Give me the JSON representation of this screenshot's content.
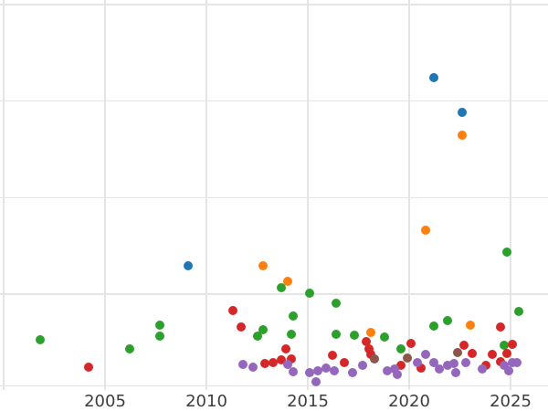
{
  "figure": {
    "background_color": "#ffffff",
    "grid_color": "#e5e5e5",
    "spine_color": "#e2e2e2",
    "tick_label_color": "#3d3d3d"
  },
  "chart_data": {
    "type": "scatter",
    "title": "",
    "xlabel": "",
    "ylabel": "",
    "grid": true,
    "legend": "none",
    "x_tick_labels": [
      "2005",
      "2010",
      "2015",
      "2020",
      "2025"
    ],
    "x_tick_years": [
      2005,
      2010,
      2015,
      2020,
      2025
    ],
    "x_gridline_years": [
      2000,
      2005,
      2010,
      2015,
      2020,
      2025
    ],
    "y_gridline_units": [
      1,
      2,
      3,
      4
    ],
    "xlim": [
      1999.8,
      2026.9
    ],
    "ylim": [
      0.04,
      4.05
    ],
    "y_axis_note": "y tick labels are cropped out of the visible image; values given in unlabeled gridline units (1 unit = one horizontal gridline spacing, 0 at extrapolated bottom gridline)",
    "marker_size_px": 10,
    "series": [
      {
        "name": "blue",
        "color": "#1f77b4",
        "points": [
          {
            "x": 2009.1,
            "y": 1.29
          },
          {
            "x": 2021.2,
            "y": 3.24
          },
          {
            "x": 2022.6,
            "y": 2.88
          }
        ]
      },
      {
        "name": "orange",
        "color": "#ff7f0e",
        "points": [
          {
            "x": 2012.8,
            "y": 1.29
          },
          {
            "x": 2014.0,
            "y": 1.13
          },
          {
            "x": 2018.1,
            "y": 0.6
          },
          {
            "x": 2020.8,
            "y": 1.66
          },
          {
            "x": 2022.6,
            "y": 2.65
          },
          {
            "x": 2023.0,
            "y": 0.68
          }
        ]
      },
      {
        "name": "green",
        "color": "#2ca02c",
        "points": [
          {
            "x": 2001.8,
            "y": 0.53
          },
          {
            "x": 2006.2,
            "y": 0.43
          },
          {
            "x": 2007.7,
            "y": 0.68
          },
          {
            "x": 2007.7,
            "y": 0.56
          },
          {
            "x": 2012.5,
            "y": 0.56
          },
          {
            "x": 2012.8,
            "y": 0.63
          },
          {
            "x": 2013.7,
            "y": 1.07
          },
          {
            "x": 2014.2,
            "y": 0.58
          },
          {
            "x": 2014.3,
            "y": 0.77
          },
          {
            "x": 2015.1,
            "y": 1.01
          },
          {
            "x": 2016.4,
            "y": 0.9
          },
          {
            "x": 2016.4,
            "y": 0.58
          },
          {
            "x": 2017.3,
            "y": 0.57
          },
          {
            "x": 2018.8,
            "y": 0.55
          },
          {
            "x": 2019.6,
            "y": 0.43
          },
          {
            "x": 2021.2,
            "y": 0.67
          },
          {
            "x": 2021.9,
            "y": 0.72
          },
          {
            "x": 2024.7,
            "y": 0.47
          },
          {
            "x": 2024.8,
            "y": 1.43
          },
          {
            "x": 2025.4,
            "y": 0.82
          }
        ]
      },
      {
        "name": "red",
        "color": "#d62728",
        "points": [
          {
            "x": 2004.2,
            "y": 0.24
          },
          {
            "x": 2011.3,
            "y": 0.83
          },
          {
            "x": 2011.7,
            "y": 0.66
          },
          {
            "x": 2012.9,
            "y": 0.28
          },
          {
            "x": 2013.3,
            "y": 0.29
          },
          {
            "x": 2013.7,
            "y": 0.32
          },
          {
            "x": 2013.9,
            "y": 0.43
          },
          {
            "x": 2014.2,
            "y": 0.33
          },
          {
            "x": 2016.2,
            "y": 0.36
          },
          {
            "x": 2016.8,
            "y": 0.29
          },
          {
            "x": 2017.9,
            "y": 0.51
          },
          {
            "x": 2018.0,
            "y": 0.43
          },
          {
            "x": 2018.1,
            "y": 0.37
          },
          {
            "x": 2019.6,
            "y": 0.26
          },
          {
            "x": 2020.1,
            "y": 0.49
          },
          {
            "x": 2020.6,
            "y": 0.23
          },
          {
            "x": 2022.7,
            "y": 0.47
          },
          {
            "x": 2023.1,
            "y": 0.38
          },
          {
            "x": 2023.8,
            "y": 0.26
          },
          {
            "x": 2024.1,
            "y": 0.37
          },
          {
            "x": 2024.5,
            "y": 0.66
          },
          {
            "x": 2024.5,
            "y": 0.3
          },
          {
            "x": 2024.8,
            "y": 0.38
          },
          {
            "x": 2025.1,
            "y": 0.48
          }
        ]
      },
      {
        "name": "purple",
        "color": "#9467bd",
        "points": [
          {
            "x": 2011.8,
            "y": 0.27
          },
          {
            "x": 2012.3,
            "y": 0.24
          },
          {
            "x": 2014.0,
            "y": 0.27
          },
          {
            "x": 2014.3,
            "y": 0.19
          },
          {
            "x": 2015.1,
            "y": 0.18
          },
          {
            "x": 2015.5,
            "y": 0.2
          },
          {
            "x": 2015.4,
            "y": 0.09
          },
          {
            "x": 2015.9,
            "y": 0.23
          },
          {
            "x": 2016.3,
            "y": 0.2
          },
          {
            "x": 2017.2,
            "y": 0.18
          },
          {
            "x": 2017.7,
            "y": 0.26
          },
          {
            "x": 2018.9,
            "y": 0.2
          },
          {
            "x": 2019.3,
            "y": 0.22
          },
          {
            "x": 2019.4,
            "y": 0.17
          },
          {
            "x": 2020.4,
            "y": 0.29
          },
          {
            "x": 2020.8,
            "y": 0.37
          },
          {
            "x": 2021.2,
            "y": 0.29
          },
          {
            "x": 2021.5,
            "y": 0.22
          },
          {
            "x": 2021.9,
            "y": 0.26
          },
          {
            "x": 2022.2,
            "y": 0.28
          },
          {
            "x": 2022.8,
            "y": 0.29
          },
          {
            "x": 2022.3,
            "y": 0.18
          },
          {
            "x": 2023.6,
            "y": 0.22
          },
          {
            "x": 2024.7,
            "y": 0.26
          },
          {
            "x": 2024.9,
            "y": 0.2
          },
          {
            "x": 2025.1,
            "y": 0.29
          },
          {
            "x": 2025.3,
            "y": 0.29
          }
        ]
      },
      {
        "name": "brown",
        "color": "#8c564b",
        "points": [
          {
            "x": 2018.3,
            "y": 0.33
          },
          {
            "x": 2019.9,
            "y": 0.34
          },
          {
            "x": 2022.4,
            "y": 0.39
          }
        ]
      }
    ]
  }
}
